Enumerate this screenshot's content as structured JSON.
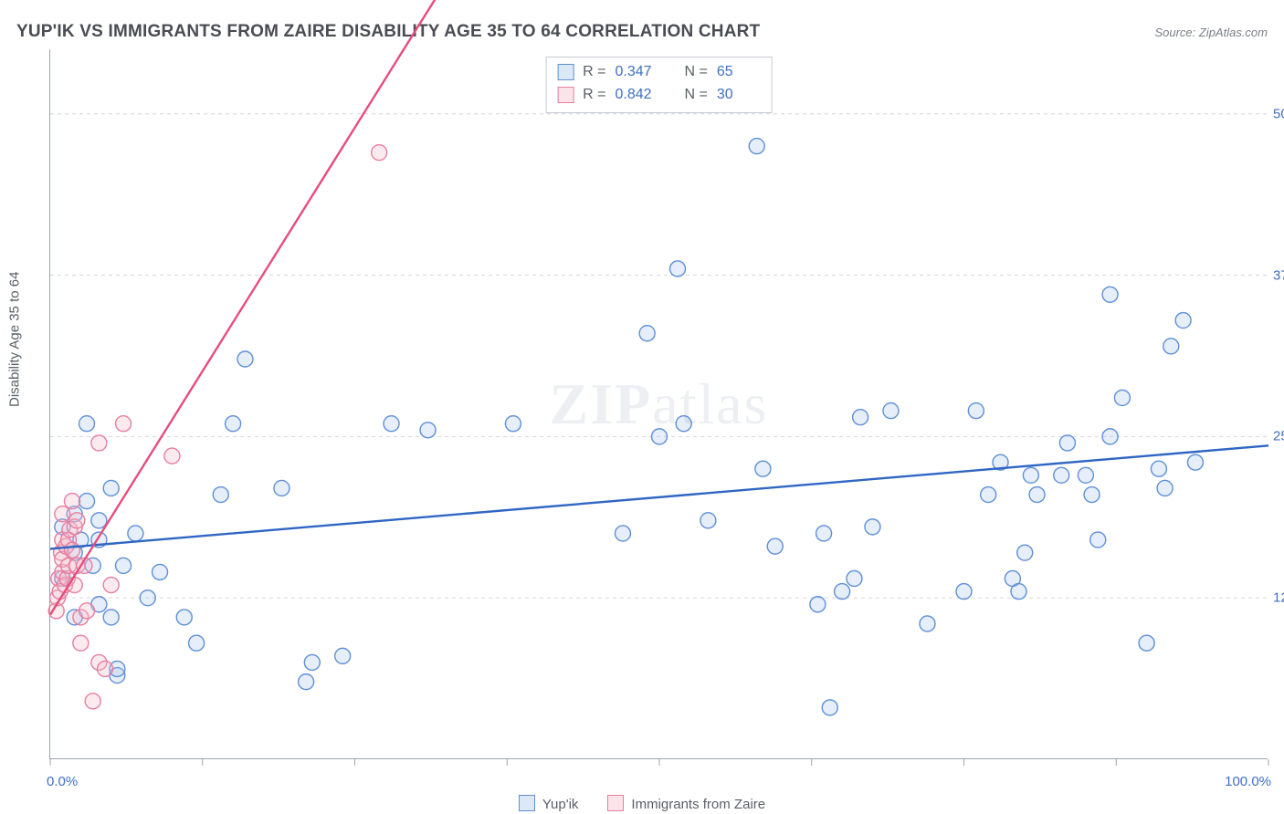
{
  "header": {
    "title": "YUP'IK VS IMMIGRANTS FROM ZAIRE DISABILITY AGE 35 TO 64 CORRELATION CHART",
    "source_prefix": "Source: ",
    "source_name": "ZipAtlas.com"
  },
  "watermark": {
    "bold": "ZIP",
    "rest": "atlas"
  },
  "chart": {
    "type": "scatter",
    "ylabel": "Disability Age 35 to 64",
    "background_color": "#ffffff",
    "grid_color": "#d4d6da",
    "grid_dash": "4 4",
    "axis_color": "#9ea3aa",
    "xlim": [
      0,
      100
    ],
    "ylim": [
      0,
      55
    ],
    "xtick_positions": [
      0,
      12.5,
      25,
      37.5,
      50,
      62.5,
      75,
      87.5,
      100
    ],
    "x_label_min": "0.0%",
    "x_label_max": "100.0%",
    "ytick_positions": [
      12.5,
      25,
      37.5,
      50
    ],
    "ytick_labels": [
      "12.5%",
      "25.0%",
      "37.5%",
      "50.0%"
    ],
    "ytick_label_color": "#3f6fc4",
    "marker_radius": 8.5,
    "marker_stroke_width": 1.4,
    "marker_fill_opacity": 0.3,
    "reg_line_width": 2.4,
    "series": [
      {
        "id": "yupik",
        "label": "Yup'ik",
        "color_stroke": "#5f8fd8",
        "color_fill": "#a9c6ea",
        "reg_color": "#2f66c4",
        "reg_p1": [
          0,
          16.3
        ],
        "reg_p2": [
          100,
          24.3
        ],
        "points": [
          [
            1,
            14
          ],
          [
            1,
            18
          ],
          [
            2,
            11
          ],
          [
            2,
            16
          ],
          [
            2,
            19
          ],
          [
            2.5,
            17
          ],
          [
            3,
            20
          ],
          [
            3,
            26
          ],
          [
            3.5,
            15
          ],
          [
            4,
            12
          ],
          [
            4,
            17
          ],
          [
            4,
            18.5
          ],
          [
            5,
            11
          ],
          [
            5,
            21
          ],
          [
            5.5,
            6.5
          ],
          [
            5.5,
            7
          ],
          [
            6,
            15
          ],
          [
            7,
            17.5
          ],
          [
            8,
            12.5
          ],
          [
            9,
            14.5
          ],
          [
            11,
            11
          ],
          [
            12,
            9
          ],
          [
            14,
            20.5
          ],
          [
            15,
            26
          ],
          [
            16,
            31
          ],
          [
            19,
            21
          ],
          [
            21,
            6
          ],
          [
            21.5,
            7.5
          ],
          [
            24,
            8
          ],
          [
            28,
            26
          ],
          [
            31,
            25.5
          ],
          [
            38,
            26
          ],
          [
            47,
            17.5
          ],
          [
            49,
            33
          ],
          [
            50,
            25
          ],
          [
            51.5,
            38
          ],
          [
            52,
            26
          ],
          [
            54,
            18.5
          ],
          [
            58,
            47.5
          ],
          [
            58.5,
            22.5
          ],
          [
            59.5,
            16.5
          ],
          [
            63,
            12
          ],
          [
            63.5,
            17.5
          ],
          [
            64,
            4
          ],
          [
            65,
            13
          ],
          [
            66,
            14
          ],
          [
            66.5,
            26.5
          ],
          [
            67.5,
            18
          ],
          [
            69,
            27
          ],
          [
            72,
            10.5
          ],
          [
            75,
            13
          ],
          [
            76,
            27
          ],
          [
            77,
            20.5
          ],
          [
            78,
            23
          ],
          [
            79,
            14
          ],
          [
            79.5,
            13
          ],
          [
            80,
            16
          ],
          [
            80.5,
            22
          ],
          [
            81,
            20.5
          ],
          [
            83,
            22
          ],
          [
            83.5,
            24.5
          ],
          [
            85,
            22
          ],
          [
            85.5,
            20.5
          ],
          [
            86,
            17
          ],
          [
            87,
            36
          ],
          [
            87,
            25
          ],
          [
            88,
            28
          ],
          [
            90,
            9
          ],
          [
            91,
            22.5
          ],
          [
            91.5,
            21
          ],
          [
            92,
            32
          ],
          [
            93,
            34
          ],
          [
            94,
            23
          ]
        ]
      },
      {
        "id": "zaire",
        "label": "Immigrants from Zaire",
        "color_stroke": "#e77ea0",
        "color_fill": "#f3bccb",
        "reg_color": "#e64d7d",
        "reg_p1": [
          0,
          11.2
        ],
        "reg_p2": [
          33,
          61
        ],
        "points": [
          [
            0.5,
            11.5
          ],
          [
            0.6,
            12.5
          ],
          [
            0.7,
            14
          ],
          [
            0.8,
            13
          ],
          [
            0.9,
            16
          ],
          [
            1,
            14.5
          ],
          [
            1,
            15.5
          ],
          [
            1,
            17
          ],
          [
            1,
            19
          ],
          [
            1.2,
            13.5
          ],
          [
            1.3,
            16.5
          ],
          [
            1.4,
            14
          ],
          [
            1.5,
            15
          ],
          [
            1.5,
            17
          ],
          [
            1.6,
            17.8
          ],
          [
            1.8,
            16.2
          ],
          [
            1.8,
            20
          ],
          [
            2,
            13.5
          ],
          [
            2,
            18
          ],
          [
            2.2,
            15
          ],
          [
            2.2,
            18.5
          ],
          [
            2.5,
            9
          ],
          [
            2.5,
            11
          ],
          [
            2.8,
            15
          ],
          [
            3,
            11.5
          ],
          [
            3.5,
            4.5
          ],
          [
            4,
            7.5
          ],
          [
            4,
            24.5
          ],
          [
            4.5,
            7
          ],
          [
            5,
            13.5
          ],
          [
            6,
            26
          ],
          [
            10,
            23.5
          ],
          [
            27,
            47
          ]
        ]
      }
    ],
    "stats": [
      {
        "swatch_stroke": "#5f8fd8",
        "swatch_fill": "#a9c6ea",
        "R": "0.347",
        "N": "65"
      },
      {
        "swatch_stroke": "#e77ea0",
        "swatch_fill": "#f3bccb",
        "R": "0.842",
        "N": "30"
      }
    ],
    "stats_labels": {
      "R": "R =",
      "N": "N ="
    }
  },
  "bottom_legend": [
    {
      "swatch_stroke": "#5f8fd8",
      "swatch_fill": "#a9c6ea",
      "label": "Yup'ik"
    },
    {
      "swatch_stroke": "#e77ea0",
      "swatch_fill": "#f3bccb",
      "label": "Immigrants from Zaire"
    }
  ]
}
